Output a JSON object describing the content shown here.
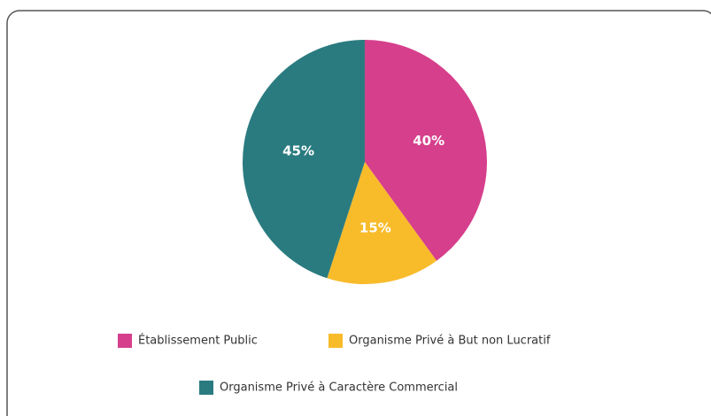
{
  "chart_data": {
    "type": "pie",
    "categories": [
      "Établissement Public",
      "Organisme Privé à But non Lucratif",
      "Organisme Privé à Caractère Commercial"
    ],
    "values": [
      40,
      15,
      45
    ],
    "value_labels": [
      "40%",
      "15%",
      "45%"
    ],
    "colors": [
      "#d63f8c",
      "#f8bb2a",
      "#2a7b80"
    ]
  }
}
